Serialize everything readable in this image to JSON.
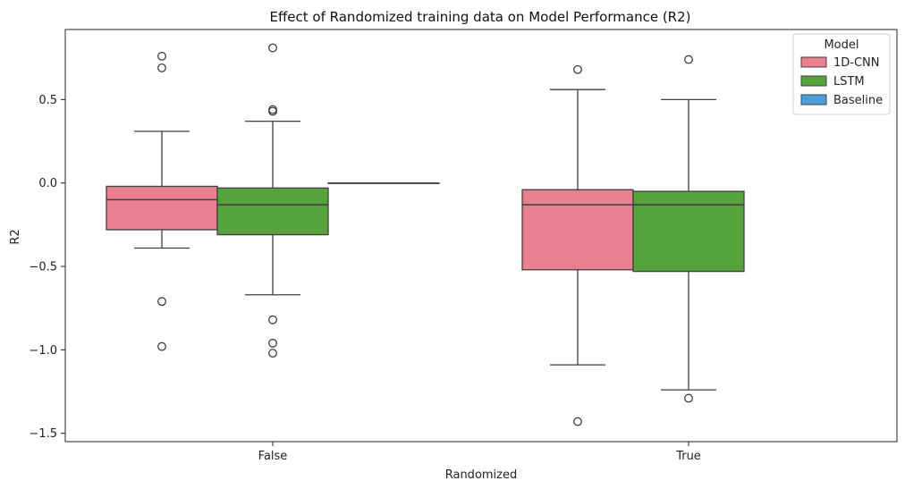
{
  "chart_data": {
    "type": "box",
    "title": "Effect of Randomized training data on Model Performance (R2)",
    "xlabel": "Randomized",
    "ylabel": "R2",
    "categories": [
      "False",
      "True"
    ],
    "ylim": [
      -1.55,
      0.92
    ],
    "yticks": [
      0.5,
      0.0,
      -0.5,
      -1.0,
      -1.5
    ],
    "ytick_labels": [
      "0.5",
      "0.0",
      "−0.5",
      "−1.0",
      "−1.5"
    ],
    "grid": false,
    "legend": {
      "title": "Model",
      "placement": "top-right",
      "entries": [
        "1D-CNN",
        "LSTM",
        "Baseline"
      ]
    },
    "series": [
      {
        "name": "1D-CNN",
        "color": "#e8808f",
        "boxes": [
          {
            "category": "False",
            "whisker_low": -0.39,
            "q1": -0.28,
            "median": -0.1,
            "q3": -0.02,
            "whisker_high": 0.31,
            "outliers": [
              0.76,
              0.69,
              -0.71,
              -0.98
            ]
          },
          {
            "category": "True",
            "whisker_low": -1.09,
            "q1": -0.52,
            "median": -0.13,
            "q3": -0.04,
            "whisker_high": 0.56,
            "outliers": [
              0.68,
              -1.43
            ]
          }
        ]
      },
      {
        "name": "LSTM",
        "color": "#57a33b",
        "boxes": [
          {
            "category": "False",
            "whisker_low": -0.67,
            "q1": -0.31,
            "median": -0.13,
            "q3": -0.03,
            "whisker_high": 0.37,
            "outliers": [
              0.81,
              0.44,
              0.43,
              -0.82,
              -0.96,
              -1.02
            ]
          },
          {
            "category": "True",
            "whisker_low": -1.24,
            "q1": -0.53,
            "median": -0.13,
            "q3": -0.05,
            "whisker_high": 0.5,
            "outliers": [
              0.74,
              -1.29
            ]
          }
        ]
      },
      {
        "name": "Baseline",
        "color": "#4c9fd8",
        "boxes": [
          {
            "category": "False",
            "whisker_low": 0.0,
            "q1": 0.0,
            "median": 0.0,
            "q3": 0.0,
            "whisker_high": 0.0,
            "outliers": []
          }
        ]
      }
    ]
  }
}
